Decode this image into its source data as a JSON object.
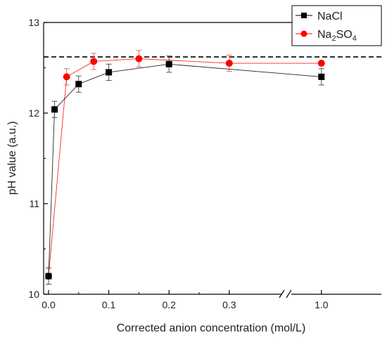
{
  "chart_data": {
    "type": "line",
    "xlabel": "Corrected anion concentration (mol/L)",
    "ylabel": "pH value (a.u.)",
    "ylim": [
      10,
      13
    ],
    "yticks": [
      10,
      11,
      12,
      13
    ],
    "xticks": [
      {
        "value": 0.0,
        "label": "0.0"
      },
      {
        "value": 0.1,
        "label": "0.1"
      },
      {
        "value": 0.2,
        "label": "0.2"
      },
      {
        "value": 0.3,
        "label": "0.3"
      },
      {
        "value": 1.0,
        "label": "1.0"
      }
    ],
    "x_axis_break": [
      0.35,
      0.95
    ],
    "reference_line": {
      "y": 12.62,
      "style": "dashed"
    },
    "legend_position": "top-right",
    "series": [
      {
        "name": "NaCl",
        "color": "#000000",
        "marker": "square",
        "points": [
          {
            "x": 0.0,
            "y": 10.2,
            "err": 0.09
          },
          {
            "x": 0.01,
            "y": 12.04,
            "err": 0.09
          },
          {
            "x": 0.05,
            "y": 12.32,
            "err": 0.09
          },
          {
            "x": 0.1,
            "y": 12.45,
            "err": 0.09
          },
          {
            "x": 0.2,
            "y": 12.54,
            "err": 0.09
          },
          {
            "x": 1.0,
            "y": 12.4,
            "err": 0.09
          }
        ]
      },
      {
        "name": "Na2SO4",
        "color": "#ff0000",
        "marker": "circle",
        "points": [
          {
            "x": 0.0,
            "y": 10.2,
            "err": 0.09
          },
          {
            "x": 0.03,
            "y": 12.4,
            "err": 0.09
          },
          {
            "x": 0.075,
            "y": 12.57,
            "err": 0.09
          },
          {
            "x": 0.15,
            "y": 12.6,
            "err": 0.09
          },
          {
            "x": 0.3,
            "y": 12.55,
            "err": 0.09
          },
          {
            "x": 1.0,
            "y": 12.55,
            "err": 0
          }
        ]
      }
    ]
  },
  "legend": {
    "nacl_label": "NaCl",
    "na2so4_base": "Na",
    "na2so4_sub1": "2",
    "na2so4_mid": "SO",
    "na2so4_sub2": "4"
  }
}
